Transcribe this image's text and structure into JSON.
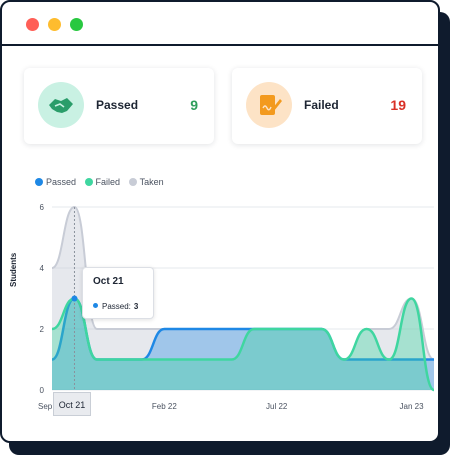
{
  "window": {
    "controls": [
      "close",
      "minimize",
      "zoom"
    ]
  },
  "stats": {
    "passed": {
      "label": "Passed",
      "value": "9",
      "icon": "handshake-icon",
      "color": "#2e9e5b"
    },
    "failed": {
      "label": "Failed",
      "value": "19",
      "icon": "signed-document-icon",
      "color": "#d93025"
    }
  },
  "tooltip": {
    "title": "Oct 21",
    "series": "Passed:",
    "value": "3"
  },
  "x_tooltip": "Oct 21",
  "chart_data": {
    "type": "area",
    "ylabel": "Students",
    "ylim": [
      0,
      6
    ],
    "yticks": [
      "0",
      "2",
      "4",
      "6"
    ],
    "xticks": [
      "Sep",
      "Feb 22",
      "Jul 22",
      "Jan 23"
    ],
    "legend": [
      "Passed",
      "Failed",
      "Taken"
    ],
    "legend_position": "top-left",
    "grid": true,
    "x": [
      "Sep 21",
      "Oct 21",
      "Nov 21",
      "Dec 21",
      "Jan 22",
      "Feb 22",
      "Mar 22",
      "Apr 22",
      "May 22",
      "Jun 22",
      "Jul 22",
      "Aug 22",
      "Sep 22",
      "Oct 22",
      "Nov 22",
      "Dec 22",
      "Jan 23",
      "Feb 23"
    ],
    "series": [
      {
        "name": "Passed",
        "color": "#1e88e5",
        "values": [
          1,
          3,
          1,
          1,
          1,
          2,
          2,
          2,
          2,
          2,
          2,
          2,
          2,
          1,
          1,
          1,
          1,
          1
        ]
      },
      {
        "name": "Failed",
        "color": "#3fd6a0",
        "values": [
          2,
          3,
          1,
          1,
          1,
          1,
          1,
          1,
          1,
          2,
          2,
          2,
          2,
          1,
          2,
          1,
          3,
          0
        ]
      },
      {
        "name": "Taken",
        "color": "#c8ccd6",
        "values": [
          4,
          6,
          2,
          2,
          2,
          2,
          2,
          2,
          2,
          2,
          2,
          2,
          2,
          1,
          2,
          2,
          3,
          1
        ]
      }
    ]
  }
}
